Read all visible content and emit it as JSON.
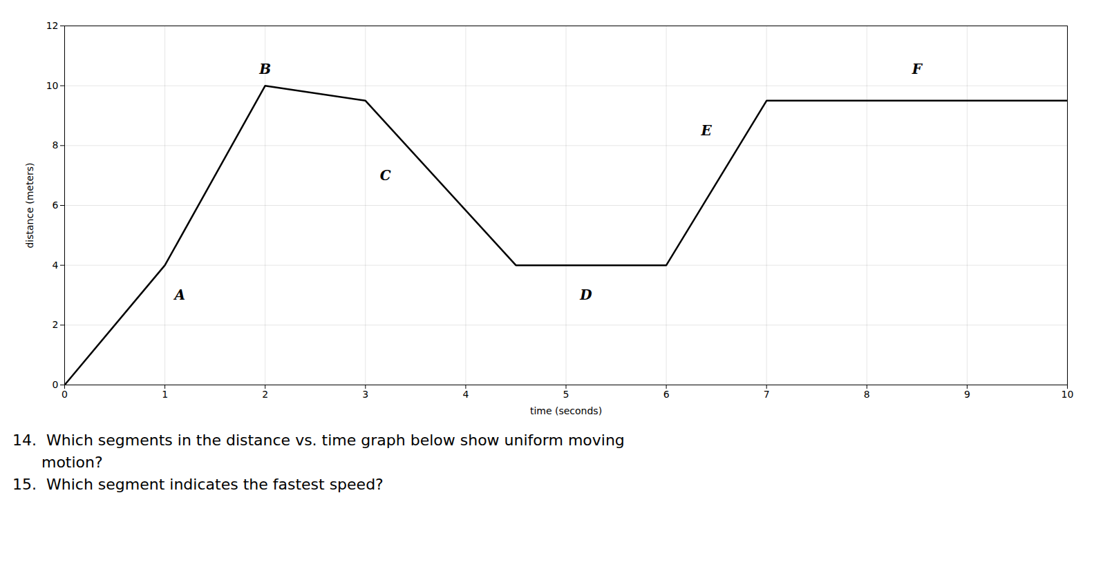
{
  "chart_data": {
    "type": "line",
    "x": [
      0,
      1,
      2,
      3,
      4.5,
      6,
      7,
      8,
      10
    ],
    "values": [
      0,
      4,
      10,
      9.5,
      4,
      4,
      9.5,
      9.5,
      9.5
    ],
    "xlabel": "time (seconds)",
    "ylabel": "distance (meters)",
    "xlim": [
      0,
      10
    ],
    "ylim": [
      0,
      12
    ],
    "xticks": [
      0,
      1,
      2,
      3,
      4,
      5,
      6,
      7,
      8,
      9,
      10
    ],
    "yticks": [
      0,
      2,
      4,
      6,
      8,
      10,
      12
    ],
    "grid": true,
    "annotations": [
      {
        "text": "A",
        "x": 1.15,
        "y": 3.0
      },
      {
        "text": "B",
        "x": 2.0,
        "y": 10.55
      },
      {
        "text": "C",
        "x": 3.2,
        "y": 7.0
      },
      {
        "text": "D",
        "x": 5.2,
        "y": 3.0
      },
      {
        "text": "E",
        "x": 6.4,
        "y": 8.5
      },
      {
        "text": "F",
        "x": 8.5,
        "y": 10.55
      }
    ],
    "caption": [
      "14.  Which segments in the distance vs. time graph below show uniform moving",
      "      motion?",
      "15.  Which segment indicates the fastest speed?"
    ]
  }
}
